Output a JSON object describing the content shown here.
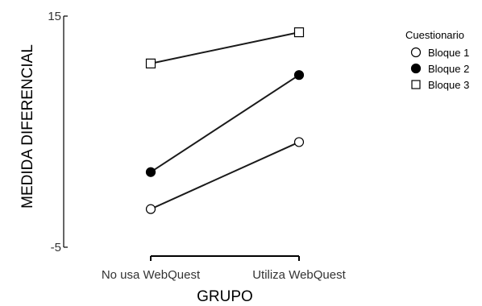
{
  "chart_data": {
    "type": "line",
    "xlabel": "GRUPO",
    "ylabel": "MEDIDA DIFERENCIAL",
    "categories": [
      "No usa WebQuest",
      "Utiliza WebQuest"
    ],
    "ylim": [
      -5,
      15
    ],
    "y_tick_labels": [
      "15",
      "-5"
    ],
    "legend": {
      "title": "Cuestionario",
      "position": "right"
    },
    "grid": false,
    "series": [
      {
        "name": "Bloque 1",
        "marker": "open-circle",
        "values": [
          -1.7,
          4.1
        ]
      },
      {
        "name": "Bloque 2",
        "marker": "filled-circle",
        "values": [
          1.5,
          9.9
        ]
      },
      {
        "name": "Bloque 3",
        "marker": "open-square",
        "values": [
          10.9,
          13.6
        ]
      }
    ]
  }
}
